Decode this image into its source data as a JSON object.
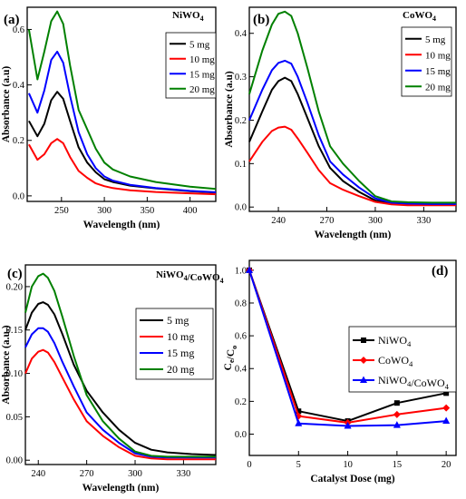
{
  "chart_data": [
    {
      "id": "a",
      "type": "line",
      "panel_label": "(a)",
      "title": "NiWO4",
      "xlabel": "Wavelength (nm)",
      "ylabel": "Absorbance (a.u)",
      "xlim": [
        210,
        430
      ],
      "ylim": [
        -0.02,
        0.68
      ],
      "xticks": [
        250,
        300,
        350,
        400
      ],
      "yticks": [
        0.0,
        0.2,
        0.4,
        0.6
      ],
      "legend_position": "right",
      "series": [
        {
          "name": "5 mg",
          "color": "#000000",
          "x": [
            212,
            222,
            230,
            238,
            245,
            252,
            260,
            270,
            280,
            290,
            300,
            310,
            330,
            360,
            400,
            430
          ],
          "y": [
            0.27,
            0.215,
            0.26,
            0.345,
            0.375,
            0.35,
            0.27,
            0.175,
            0.12,
            0.085,
            0.06,
            0.05,
            0.037,
            0.027,
            0.017,
            0.012
          ]
        },
        {
          "name": "10 mg",
          "color": "#ff0000",
          "x": [
            212,
            222,
            230,
            238,
            245,
            252,
            260,
            270,
            280,
            290,
            300,
            310,
            330,
            360,
            400,
            430
          ],
          "y": [
            0.185,
            0.13,
            0.15,
            0.19,
            0.205,
            0.19,
            0.14,
            0.09,
            0.065,
            0.045,
            0.035,
            0.028,
            0.02,
            0.014,
            0.009,
            0.006
          ]
        },
        {
          "name": "15 mg",
          "color": "#0000ff",
          "x": [
            212,
            222,
            230,
            238,
            245,
            252,
            260,
            270,
            280,
            290,
            300,
            310,
            330,
            360,
            400,
            430
          ],
          "y": [
            0.37,
            0.3,
            0.38,
            0.49,
            0.52,
            0.48,
            0.36,
            0.23,
            0.15,
            0.1,
            0.07,
            0.055,
            0.04,
            0.028,
            0.018,
            0.013
          ]
        },
        {
          "name": "20 mg",
          "color": "#008000",
          "x": [
            212,
            222,
            230,
            238,
            245,
            252,
            260,
            270,
            280,
            290,
            300,
            310,
            330,
            360,
            400,
            430
          ],
          "y": [
            0.6,
            0.42,
            0.52,
            0.63,
            0.665,
            0.62,
            0.47,
            0.31,
            0.24,
            0.17,
            0.12,
            0.095,
            0.07,
            0.05,
            0.033,
            0.025
          ]
        }
      ]
    },
    {
      "id": "b",
      "type": "line",
      "panel_label": "(b)",
      "title": "CoWO4",
      "xlabel": "Wavelength (nm)",
      "ylabel": "Absorbance (a.u)",
      "xlim": [
        222,
        350
      ],
      "ylim": [
        -0.01,
        0.46
      ],
      "xticks": [
        240,
        270,
        300,
        330
      ],
      "yticks": [
        0.0,
        0.1,
        0.2,
        0.3,
        0.4
      ],
      "legend_position": "top-right",
      "series": [
        {
          "name": "5 mg",
          "color": "#000000",
          "x": [
            222,
            230,
            236,
            240,
            244,
            248,
            252,
            258,
            265,
            272,
            280,
            290,
            300,
            310,
            320,
            335,
            350
          ],
          "y": [
            0.15,
            0.22,
            0.27,
            0.29,
            0.298,
            0.29,
            0.26,
            0.205,
            0.14,
            0.09,
            0.06,
            0.035,
            0.015,
            0.008,
            0.006,
            0.005,
            0.005
          ]
        },
        {
          "name": "10 mg",
          "color": "#ff0000",
          "x": [
            222,
            230,
            236,
            240,
            244,
            248,
            252,
            258,
            265,
            272,
            280,
            290,
            300,
            310,
            320,
            335,
            350
          ],
          "y": [
            0.105,
            0.15,
            0.175,
            0.183,
            0.185,
            0.178,
            0.158,
            0.125,
            0.085,
            0.055,
            0.04,
            0.025,
            0.012,
            0.006,
            0.004,
            0.004,
            0.004
          ]
        },
        {
          "name": "15 mg",
          "color": "#0000ff",
          "x": [
            222,
            230,
            236,
            240,
            244,
            248,
            252,
            258,
            265,
            272,
            280,
            290,
            300,
            310,
            320,
            335,
            350
          ],
          "y": [
            0.2,
            0.27,
            0.315,
            0.332,
            0.337,
            0.33,
            0.3,
            0.24,
            0.165,
            0.105,
            0.075,
            0.045,
            0.02,
            0.01,
            0.008,
            0.007,
            0.007
          ]
        },
        {
          "name": "20 mg",
          "color": "#008000",
          "x": [
            222,
            230,
            236,
            240,
            244,
            248,
            252,
            258,
            265,
            272,
            280,
            290,
            300,
            310,
            320,
            335,
            350
          ],
          "y": [
            0.26,
            0.36,
            0.42,
            0.445,
            0.45,
            0.44,
            0.4,
            0.32,
            0.22,
            0.14,
            0.1,
            0.06,
            0.025,
            0.013,
            0.011,
            0.01,
            0.01
          ]
        }
      ]
    },
    {
      "id": "c",
      "type": "line",
      "panel_label": "(c)",
      "title": "NiWO4/CoWO4",
      "xlabel": "Wavelength (nm)",
      "ylabel": "Absorbance (a.u.)",
      "xlim": [
        232,
        350
      ],
      "ylim": [
        -0.005,
        0.225
      ],
      "xticks": [
        240,
        270,
        300,
        330
      ],
      "yticks": [
        0.0,
        0.05,
        0.1,
        0.15,
        0.2
      ],
      "legend_position": "right",
      "series": [
        {
          "name": "5 mg",
          "color": "#000000",
          "x": [
            232,
            236,
            240,
            243,
            246,
            250,
            255,
            262,
            270,
            280,
            290,
            300,
            310,
            320,
            335,
            350
          ],
          "y": [
            0.15,
            0.17,
            0.18,
            0.182,
            0.179,
            0.168,
            0.145,
            0.11,
            0.08,
            0.055,
            0.035,
            0.02,
            0.012,
            0.009,
            0.007,
            0.006
          ]
        },
        {
          "name": "10 mg",
          "color": "#ff0000",
          "x": [
            232,
            236,
            240,
            243,
            246,
            250,
            255,
            262,
            270,
            280,
            290,
            300,
            310,
            320,
            335,
            350
          ],
          "y": [
            0.1,
            0.117,
            0.125,
            0.127,
            0.124,
            0.113,
            0.095,
            0.07,
            0.045,
            0.028,
            0.015,
            0.005,
            0.002,
            0.001,
            0.001,
            0.001
          ]
        },
        {
          "name": "15 mg",
          "color": "#0000ff",
          "x": [
            232,
            236,
            240,
            243,
            246,
            250,
            255,
            262,
            270,
            280,
            290,
            300,
            310,
            320,
            335,
            350
          ],
          "y": [
            0.13,
            0.145,
            0.152,
            0.152,
            0.148,
            0.135,
            0.113,
            0.085,
            0.055,
            0.035,
            0.02,
            0.008,
            0.004,
            0.003,
            0.003,
            0.003
          ]
        },
        {
          "name": "20 mg",
          "color": "#008000",
          "x": [
            232,
            236,
            240,
            243,
            246,
            250,
            255,
            262,
            270,
            280,
            290,
            300,
            310,
            320,
            335,
            350
          ],
          "y": [
            0.17,
            0.2,
            0.212,
            0.215,
            0.21,
            0.195,
            0.165,
            0.12,
            0.075,
            0.045,
            0.025,
            0.01,
            0.005,
            0.004,
            0.004,
            0.004
          ]
        }
      ]
    },
    {
      "id": "d",
      "type": "line",
      "panel_label": "(d)",
      "xlabel": "Catalyst Dose (mg)",
      "ylabel": "Ce/Co",
      "xlim": [
        0,
        21
      ],
      "ylim": [
        -0.13,
        1.06
      ],
      "xticks": [
        0,
        5,
        10,
        15,
        20
      ],
      "yticks": [
        0.0,
        0.2,
        0.4,
        0.6,
        0.8,
        1.0
      ],
      "legend_position": "right",
      "series": [
        {
          "name": "NiWO4",
          "color": "#000000",
          "marker": "square",
          "x": [
            0,
            5,
            10,
            15,
            20
          ],
          "y": [
            1.0,
            0.14,
            0.08,
            0.19,
            0.25
          ]
        },
        {
          "name": "CoWO4",
          "color": "#ff0000",
          "marker": "diamond",
          "x": [
            0,
            5,
            10,
            15,
            20
          ],
          "y": [
            1.0,
            0.11,
            0.07,
            0.12,
            0.16
          ]
        },
        {
          "name": "NiWO4/CoWO4",
          "color": "#0000ff",
          "marker": "triangle",
          "x": [
            0,
            5,
            10,
            15,
            20
          ],
          "y": [
            1.0,
            0.065,
            0.05,
            0.055,
            0.08
          ]
        }
      ]
    }
  ]
}
